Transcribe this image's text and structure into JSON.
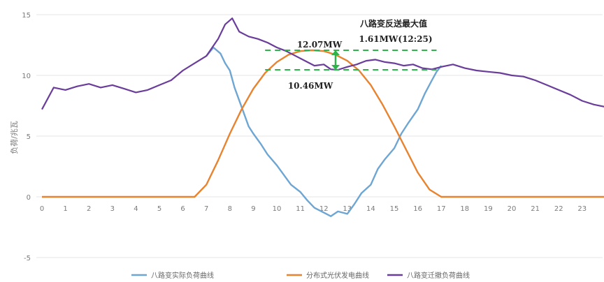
{
  "chart_data": {
    "type": "line",
    "xlabel": "",
    "ylabel": "负荷/兆瓦",
    "x_ticks": [
      "0",
      "1",
      "2",
      "3",
      "4",
      "5",
      "6",
      "7",
      "8",
      "9",
      "10",
      "11",
      "12",
      "13",
      "14",
      "15",
      "16",
      "17",
      "18",
      "19",
      "20",
      "21",
      "22",
      "23"
    ],
    "y_ticks": [
      "15",
      "10",
      "5",
      "0",
      "-5"
    ],
    "xlim": [
      0,
      24
    ],
    "ylim": [
      -5,
      15
    ],
    "grid": true,
    "legend_position": "bottom",
    "series": [
      {
        "name": "八路变实际负荷曲线",
        "color": "#6ea6d3",
        "x": [
          0,
          6.5,
          7,
          7.3,
          7.6,
          7.8,
          8,
          8.2,
          8.5,
          8.8,
          9,
          9.3,
          9.6,
          10,
          10.3,
          10.6,
          11,
          11.3,
          11.6,
          12,
          12.3,
          12.6,
          13,
          13.3,
          13.6,
          14,
          14.3,
          14.6,
          15,
          15.3,
          15.6,
          16,
          16.3,
          16.6,
          16.8,
          17
        ],
        "y": [
          null,
          null,
          11.6,
          12.3,
          11.8,
          11.0,
          10.4,
          9.0,
          7.4,
          5.8,
          5.2,
          4.4,
          3.5,
          2.6,
          1.8,
          1.0,
          0.4,
          -0.3,
          -0.9,
          -1.3,
          -1.6,
          -1.2,
          -1.4,
          -0.6,
          0.3,
          1.0,
          2.3,
          3.1,
          4.0,
          5.2,
          6.1,
          7.2,
          8.5,
          9.6,
          10.3,
          10.8
        ]
      },
      {
        "name": "分布式光伏发电曲线",
        "color": "#e8832f",
        "x": [
          0,
          6.5,
          7,
          7.5,
          8,
          8.5,
          9,
          9.5,
          10,
          10.5,
          11,
          11.5,
          12,
          12.5,
          13,
          13.5,
          14,
          14.5,
          15,
          15.5,
          16,
          16.5,
          17,
          24
        ],
        "y": [
          0,
          0,
          1.0,
          3.0,
          5.2,
          7.2,
          8.9,
          10.2,
          11.1,
          11.7,
          12.0,
          12.07,
          12.0,
          11.7,
          11.2,
          10.4,
          9.2,
          7.6,
          5.8,
          3.9,
          2.0,
          0.6,
          0,
          0
        ]
      },
      {
        "name": "八路变迁撤负荷曲线",
        "color": "#6a3d9a",
        "x": [
          0,
          0.5,
          1,
          1.5,
          2,
          2.5,
          3,
          3.5,
          4,
          4.5,
          5,
          5.5,
          6,
          6.5,
          7,
          7.5,
          7.8,
          8.1,
          8.4,
          8.8,
          9.2,
          9.6,
          10,
          10.4,
          10.8,
          11.2,
          11.6,
          12,
          12.3,
          12.6,
          13,
          13.4,
          13.8,
          14.2,
          14.6,
          15,
          15.4,
          15.8,
          16.2,
          16.6,
          17,
          17.5,
          18,
          18.5,
          19,
          19.5,
          20,
          20.5,
          21,
          21.5,
          22,
          22.5,
          23,
          23.5,
          24
        ],
        "y": [
          7.2,
          9.0,
          8.8,
          9.1,
          9.3,
          9.0,
          9.2,
          8.9,
          8.6,
          8.8,
          9.2,
          9.6,
          10.4,
          11.0,
          11.6,
          13.0,
          14.2,
          14.7,
          13.6,
          13.2,
          13.0,
          12.7,
          12.3,
          12.0,
          11.6,
          11.2,
          10.8,
          10.9,
          10.5,
          10.46,
          10.7,
          10.9,
          11.2,
          11.3,
          11.1,
          11.0,
          10.8,
          10.9,
          10.6,
          10.5,
          10.7,
          10.9,
          10.6,
          10.4,
          10.3,
          10.2,
          10.0,
          9.9,
          9.6,
          9.2,
          8.8,
          8.4,
          7.9,
          7.6,
          7.4
        ]
      }
    ],
    "annotations": {
      "title": "八路变反送最大值",
      "max_reverse": "1.61MW(12:25)",
      "upper_level": "12.07MW",
      "lower_level": "10.46MW"
    },
    "ref_lines": [
      12.07,
      10.46
    ]
  }
}
